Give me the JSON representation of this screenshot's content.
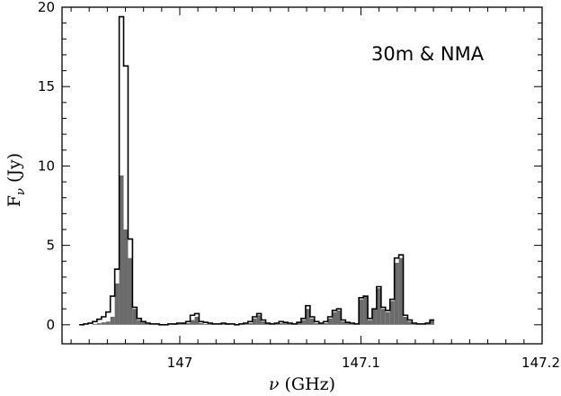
{
  "chart_data": {
    "type": "histogram",
    "xlabel": "ν (GHz)",
    "ylabel": "Fν (Jy)",
    "annotation": "30m & NMA",
    "xlim": [
      146.935,
      147.2
    ],
    "ylim": [
      -1.2,
      20
    ],
    "xticks": [
      147,
      147.1,
      147.2
    ],
    "xtick_labels": [
      "147",
      "147.1",
      "147.2"
    ],
    "yticks": [
      0,
      5,
      10,
      15,
      20
    ],
    "ytick_labels": [
      "0",
      "5",
      "10",
      "15",
      "20"
    ],
    "bin_width": 0.00245,
    "x_start": 146.9445,
    "series": [
      {
        "name": "30m",
        "style": "outline",
        "color": "#000000",
        "values": [
          0.0,
          0.05,
          0.1,
          0.2,
          0.35,
          0.5,
          0.8,
          1.8,
          3.5,
          19.4,
          16.3,
          5.4,
          1.1,
          0.4,
          0.2,
          0.1,
          0.05,
          0.05,
          0.0,
          0.0,
          0.05,
          0.05,
          0.1,
          0.1,
          0.2,
          0.6,
          0.7,
          0.2,
          0.15,
          0.1,
          0.05,
          0.05,
          0.1,
          0.05,
          0.05,
          0.0,
          0.05,
          0.1,
          0.2,
          0.5,
          0.7,
          0.3,
          0.1,
          0.05,
          0.1,
          0.2,
          0.15,
          0.1,
          0.05,
          0.15,
          0.4,
          1.2,
          0.5,
          0.2,
          0.1,
          0.2,
          0.5,
          0.9,
          1.0,
          0.3,
          0.15,
          0.1,
          0.05,
          1.7,
          1.8,
          0.4,
          1.0,
          2.4,
          1.1,
          0.9,
          1.6,
          4.2,
          4.4,
          0.6,
          0.3,
          0.1,
          0.05,
          0.05,
          0.1,
          0.3
        ]
      },
      {
        "name": "NMA",
        "style": "filled",
        "color": "#6b6b6b",
        "values": [
          0.0,
          0.0,
          0.0,
          0.05,
          0.1,
          0.15,
          0.2,
          0.5,
          2.6,
          9.4,
          6.0,
          4.2,
          1.0,
          0.3,
          0.15,
          0.05,
          0.0,
          0.0,
          0.0,
          0.0,
          0.0,
          0.05,
          0.05,
          0.1,
          0.1,
          0.3,
          0.5,
          0.1,
          0.05,
          0.05,
          0.0,
          0.0,
          0.05,
          0.05,
          0.0,
          0.0,
          0.0,
          0.05,
          0.1,
          0.4,
          0.6,
          0.2,
          0.05,
          0.0,
          0.05,
          0.1,
          0.1,
          0.05,
          0.0,
          0.1,
          0.3,
          1.0,
          0.4,
          0.1,
          0.05,
          0.1,
          0.4,
          0.8,
          0.9,
          0.2,
          0.1,
          0.05,
          0.0,
          1.6,
          1.8,
          0.3,
          1.0,
          2.3,
          1.0,
          0.8,
          1.5,
          3.9,
          4.2,
          0.5,
          0.2,
          0.05,
          0.0,
          0.0,
          0.05,
          0.3
        ]
      }
    ]
  }
}
